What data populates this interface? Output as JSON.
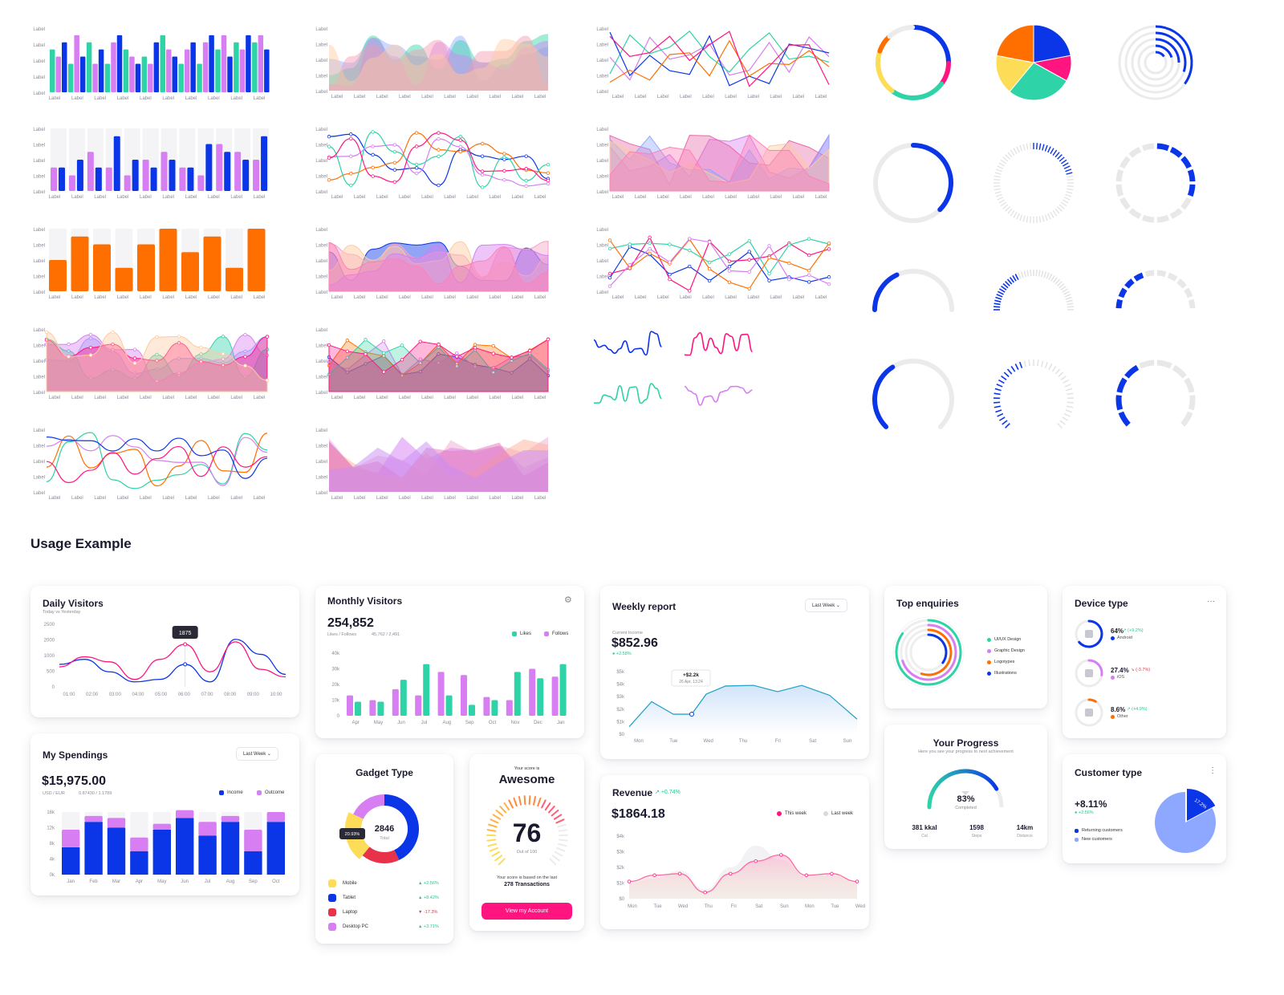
{
  "colors": {
    "teal": "#2ed3a7",
    "blue": "#0b36e8",
    "violet": "#d67ef2",
    "orange": "#ff6f00",
    "pink": "#ff1480",
    "yellow": "#fddc58",
    "navy": "#1e3fa5",
    "grey": "#ebebeb"
  },
  "gallery": {
    "tick_label": "Label",
    "bar_charts": [
      {
        "type": "bar",
        "series": [
          {
            "values": [
              6,
              4,
              7,
              4,
              6,
              5,
              8,
              4,
              4,
              6,
              7,
              7
            ]
          },
          {
            "values": [
              5,
              8,
              4,
              7,
              5,
              4,
              6,
              6,
              7,
              8,
              6,
              8
            ]
          },
          {
            "values": [
              7,
              5,
              6,
              8,
              4,
              7,
              5,
              7,
              8,
              5,
              8,
              6
            ]
          }
        ]
      },
      {
        "type": "bar",
        "series": [
          {
            "values": [
              3,
              2,
              5,
              3,
              2,
              4,
              5,
              3,
              2,
              6,
              5,
              4
            ]
          },
          {
            "values": [
              3,
              4,
              3,
              7,
              4,
              3,
              4,
              3,
              6,
              5,
              4,
              7
            ]
          }
        ]
      },
      {
        "type": "bar",
        "values": [
          4,
          7,
          6,
          3,
          6,
          8,
          5,
          7,
          3,
          8
        ],
        "ylim": [
          0,
          8
        ]
      }
    ],
    "donut_multi": [
      {
        "color": "#0b36e8",
        "value": 0.25
      },
      {
        "color": "#ff1480",
        "value": 0.1
      },
      {
        "color": "#2ed3a7",
        "value": 0.25
      },
      {
        "color": "#fddc58",
        "value": 0.2
      },
      {
        "color": "#ff6f00",
        "value": 0.08
      },
      {
        "color": "#ebebeb",
        "value": 0.12
      }
    ],
    "pie": [
      {
        "color": "#0b36e8",
        "value": 0.22
      },
      {
        "color": "#ff1480",
        "value": 0.11
      },
      {
        "color": "#2ed3a7",
        "value": 0.28
      },
      {
        "color": "#fddc58",
        "value": 0.17
      },
      {
        "color": "#ff6f00",
        "value": 0.22
      }
    ],
    "rings_progress": [
      0.7,
      0.6,
      0.5,
      0.4,
      0.3
    ],
    "gauge_rows": [
      {
        "solid": 0.36,
        "ticked": 0.18,
        "segmented": 0.4
      },
      {
        "solid": 0.38,
        "ticked": 0.22,
        "segmented": 0.32
      },
      {
        "solid": 0.4,
        "ticked": 0.3,
        "segmented": 0.4
      }
    ]
  },
  "section_title": "Usage Example",
  "daily_visitors": {
    "title": "Daily Visitors",
    "subtitle": "Today vs Yesterday",
    "tooltip": "1875",
    "chart_data": {
      "type": "line",
      "yticks": [
        "2500",
        "2000",
        "1000",
        "500",
        "0"
      ],
      "categories": [
        "01:00",
        "02:00",
        "03:00",
        "04:00",
        "05:00",
        "06:00",
        "07:00",
        "08:00",
        "09:00",
        "10:00"
      ],
      "series": [
        {
          "color": "#0b36e8",
          "values": [
            900,
            1100,
            600,
            200,
            300,
            900,
            200,
            1900,
            1300,
            500
          ]
        },
        {
          "color": "#ff1480",
          "values": [
            800,
            1200,
            1000,
            300,
            1100,
            1700,
            600,
            1800,
            700,
            400
          ]
        }
      ]
    }
  },
  "monthly_visitors": {
    "title": "Monthly Visitors",
    "value": "254,852",
    "sub": "Likes / Follows",
    "sub2": "45,762 / 2,491",
    "legend": [
      "Likes",
      "Follows"
    ],
    "chart_data": {
      "type": "bar",
      "yticks": [
        "40k",
        "30k",
        "20k",
        "10k",
        "0"
      ],
      "categories": [
        "Apr",
        "May",
        "Jun",
        "Jul",
        "Aug",
        "Sep",
        "Oct",
        "Nov",
        "Dec",
        "Jan"
      ],
      "series": [
        {
          "name": "Follows",
          "color": "#d67ef2",
          "values": [
            13,
            10,
            17,
            13,
            28,
            26,
            12,
            10,
            30,
            25
          ]
        },
        {
          "name": "Likes",
          "color": "#2ed3a7",
          "values": [
            9,
            9,
            23,
            33,
            13,
            7,
            10,
            28,
            24,
            33
          ]
        }
      ]
    }
  },
  "weekly_report": {
    "title": "Weekly report",
    "dropdown": "Last Week",
    "label": "Current Income",
    "value": "$852.96",
    "change": "+2.58%",
    "tooltip_value": "+$2.2k",
    "tooltip_date": "26 Apr, 13:24",
    "chart_data": {
      "type": "area",
      "yticks": [
        "$5k",
        "$4k",
        "$3k",
        "$2k",
        "$1k",
        "$0"
      ],
      "categories": [
        "Mon",
        "Tue",
        "Wed",
        "Thu",
        "Fri",
        "Sat",
        "Sun"
      ],
      "values": [
        0.6,
        2.6,
        1.2,
        3.8,
        4.0,
        3.2,
        1.2
      ]
    }
  },
  "top_enquiries": {
    "title": "Top enquiries",
    "legend": [
      {
        "label": "UI/UX Design",
        "color": "#2ed3a7"
      },
      {
        "label": "Graphic Design",
        "color": "#d67ef2"
      },
      {
        "label": "Logotypes",
        "color": "#ff6f00"
      },
      {
        "label": "Illustrations",
        "color": "#0b36e8"
      }
    ]
  },
  "device_type": {
    "title": "Device type",
    "menu": "···",
    "items": [
      {
        "pct": "64%",
        "change": "(+9.2%)",
        "label": "Android",
        "color": "#0b36e8",
        "dir": "up",
        "value": 0.64
      },
      {
        "pct": "27.4%",
        "change": "(-3.7%)",
        "label": "iOS",
        "color": "#d67ef2",
        "dir": "down",
        "value": 0.274
      },
      {
        "pct": "8.6%",
        "change": "(+4.9%)",
        "label": "Other",
        "color": "#ff6f00",
        "dir": "up",
        "value": 0.086
      }
    ]
  },
  "my_spendings": {
    "title": "My Spendings",
    "dropdown": "Last Week",
    "value": "$15,975.00",
    "sub": "USD / EUR",
    "sub2": "0.87430 / 1.1789",
    "legend": [
      "Income",
      "Outcome"
    ],
    "chart_data": {
      "type": "stacked_bar",
      "yticks": [
        "16k",
        "12k",
        "8k",
        "4k",
        "0k"
      ],
      "categories": [
        "Jan",
        "Feb",
        "Mar",
        "Apr",
        "May",
        "Jun",
        "Jul",
        "Aug",
        "Sep",
        "Oct"
      ],
      "series": [
        {
          "name": "Income",
          "color": "#0b36e8",
          "values": [
            7,
            13.5,
            12,
            6,
            11.5,
            14.5,
            10,
            13.5,
            6,
            13.5
          ]
        },
        {
          "name": "Outcome",
          "color": "#d67ef2",
          "values": [
            4.5,
            1.5,
            2.5,
            3.5,
            1.5,
            2,
            3.5,
            1.5,
            5.5,
            2.5
          ]
        }
      ]
    }
  },
  "gadget_type": {
    "title": "Gadget Type",
    "center_value": "2846",
    "center_label": "Total",
    "tooltip": "20.93%",
    "items": [
      {
        "label": "Mobile",
        "change": "+2.56%",
        "color": "#fddc58",
        "dir": "up"
      },
      {
        "label": "Tablet",
        "change": "+8.42%",
        "color": "#0b36e8",
        "dir": "up"
      },
      {
        "label": "Laptop",
        "change": "-17.3%",
        "color": "#e8324a",
        "dir": "down"
      },
      {
        "label": "Desktop PC",
        "change": "+3.71%",
        "color": "#d67ef2",
        "dir": "up"
      }
    ],
    "chart_data": {
      "type": "donut",
      "values": [
        0.43,
        0.18,
        0.21,
        0.18
      ],
      "colors": [
        "#0b36e8",
        "#e8324a",
        "#fddc58",
        "#d67ef2"
      ]
    }
  },
  "score": {
    "pre": "Your score is",
    "title": "Awesome",
    "value": "76",
    "out_of": "Out of 100",
    "note1": "Your score is based on the last",
    "note2": "278 Transactions",
    "button": "View my Account",
    "progress": 0.76
  },
  "revenue": {
    "title": "Revenue",
    "change": "+0.74%",
    "value": "$1864.18",
    "legend": [
      "This week",
      "Last week"
    ],
    "chart_data": {
      "type": "area",
      "yticks": [
        "$4k",
        "$3k",
        "$2k",
        "$1k",
        "$0"
      ],
      "categories": [
        "Mon",
        "Tue",
        "Wed",
        "Thu",
        "Fri",
        "Sat",
        "Sun",
        "Mon",
        "Tue",
        "Wed"
      ],
      "series": [
        {
          "name": "This week",
          "color": "#ff1480",
          "values": [
            1.1,
            1.5,
            1.6,
            0.4,
            1.6,
            2.4,
            2.8,
            1.5,
            1.6,
            1.1
          ]
        },
        {
          "name": "Last week",
          "color": "#ffc9a0",
          "values": [
            1.0,
            1.3,
            1.8,
            0.6,
            2.0,
            3.4,
            2.5,
            1.4,
            1.5,
            1.0
          ]
        }
      ]
    }
  },
  "your_progress": {
    "title": "Your Progress",
    "subtitle": "Here you see your progress to next achievement",
    "value": "83%",
    "label": "Completed",
    "progress": 0.83,
    "stats": [
      {
        "value": "381 kkal",
        "label": "Cal"
      },
      {
        "value": "1598",
        "label": "Steps"
      },
      {
        "value": "14km",
        "label": "Distance"
      }
    ]
  },
  "customer_type": {
    "title": "Customer type",
    "menu": "⋮",
    "value": "+8.11%",
    "change": "+2.56%",
    "legend": [
      "Returning customers",
      "New customers"
    ],
    "slice_label": "17.2%",
    "slice": 0.172
  }
}
